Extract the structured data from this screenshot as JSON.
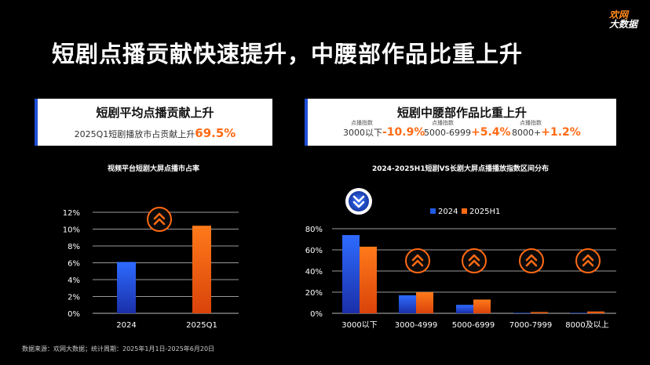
{
  "title": "短剧点播贡献快速提升，中腰部作品比重上升",
  "logo": {
    "line1": "欢网",
    "line2": "大数据"
  },
  "card_left": {
    "title": "短剧平均点播贡献上升",
    "sub_prefix": "2025Q1短剧播放市占贡献上升",
    "sub_value": "69.5%"
  },
  "card_right": {
    "title": "短剧中腰部作品比重上升",
    "metrics": [
      {
        "label": "点播指数",
        "range": "3000以下",
        "value": "-10.9%"
      },
      {
        "label": "点播指数",
        "range": "5000-6999",
        "value": "+5.4%"
      },
      {
        "label": "点播指数",
        "range": "8000+",
        "value": "+1.2%"
      }
    ]
  },
  "colors": {
    "series_2024": "#1f5ae0",
    "series_2025": "#ff6a14",
    "accent": "#ff6a14"
  },
  "chart_data": [
    {
      "type": "bar",
      "title": "视频平台短剧大屏点播市占率",
      "categories": [
        "2024",
        "2025Q1"
      ],
      "values": [
        6.1,
        10.4
      ],
      "ylim": [
        0,
        12
      ],
      "yticks": [
        "0%",
        "2%",
        "4%",
        "6%",
        "8%",
        "10%",
        "12%"
      ],
      "grid": true
    },
    {
      "type": "bar",
      "title": "2024-2025H1短剧VS长剧大屏点播播放指数区间分布",
      "categories": [
        "3000以下",
        "3000-4999",
        "5000-6999",
        "7000-7999",
        "8000及以上"
      ],
      "series": [
        {
          "name": "2024",
          "values": [
            74,
            17,
            8,
            0.5,
            0.5
          ]
        },
        {
          "name": "2025H1",
          "values": [
            63,
            20,
            13,
            1.2,
            1.7
          ]
        }
      ],
      "ylim": [
        0,
        80
      ],
      "yticks": [
        "0%",
        "20%",
        "40%",
        "60%",
        "80%"
      ],
      "legend": "top",
      "grid": true
    }
  ],
  "footer": "数据来源：欢网大数据；统计周期：2025年1月1日-2025年6月20日"
}
